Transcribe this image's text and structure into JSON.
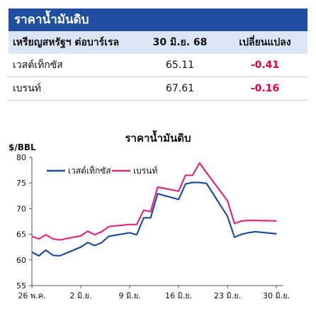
{
  "table": {
    "title": "ราคาน้ำมันดิบ",
    "header": {
      "name": "เหรียญสหรัฐฯ ต่อบาร์เรล",
      "price": "30 มิ.ย. 68",
      "change": "เปลี่ยนแปลง"
    },
    "rows": [
      {
        "name": "เวสต์เท็กซัส",
        "price": "65.11",
        "change": "-0.41"
      },
      {
        "name": "เบรนท์",
        "price": "67.61",
        "change": "-0.16"
      }
    ]
  },
  "chart_data": {
    "type": "line",
    "title": "ราคาน้ำมันดิบ",
    "ylabel": "$/BBL",
    "xlabel": "",
    "ylim": [
      55,
      80
    ],
    "yticks": [
      55,
      60,
      65,
      70,
      75,
      80
    ],
    "xlim": [
      0,
      36
    ],
    "xticks": [
      {
        "x": 0,
        "label": "26 พ.ค."
      },
      {
        "x": 7,
        "label": "2 มิ.ย."
      },
      {
        "x": 14,
        "label": "9 มิ.ย."
      },
      {
        "x": 21,
        "label": "16 มิ.ย."
      },
      {
        "x": 28,
        "label": "23 มิ.ย."
      },
      {
        "x": 35,
        "label": "30 มิ.ย."
      }
    ],
    "legend_position": "top-left",
    "grid": false,
    "series": [
      {
        "name": "เวสต์เท็กซัส",
        "color": "#1f4f9e",
        "x": [
          0,
          1,
          2,
          3,
          4,
          7,
          8,
          9,
          10,
          11,
          14,
          15,
          16,
          17,
          18,
          21,
          22,
          23,
          24,
          25,
          28,
          29,
          30,
          31,
          32,
          35
        ],
        "values": [
          61.5,
          60.8,
          61.9,
          60.9,
          60.8,
          62.5,
          63.4,
          62.8,
          63.4,
          64.6,
          65.3,
          64.9,
          68.2,
          68.2,
          72.9,
          71.8,
          74.8,
          75.1,
          75.1,
          74.9,
          68.5,
          64.4,
          65.0,
          65.3,
          65.5,
          65.1
        ]
      },
      {
        "name": "เบรนท์",
        "color": "#e0287e",
        "x": [
          0,
          1,
          2,
          3,
          4,
          7,
          8,
          9,
          10,
          11,
          14,
          15,
          16,
          17,
          18,
          21,
          22,
          23,
          24,
          25,
          28,
          29,
          30,
          31,
          32,
          35
        ],
        "values": [
          64.6,
          64.1,
          64.9,
          64.1,
          63.9,
          64.7,
          65.6,
          64.9,
          65.5,
          66.5,
          66.9,
          66.9,
          69.7,
          69.4,
          74.2,
          73.4,
          76.5,
          76.5,
          78.9,
          77.0,
          71.5,
          67.1,
          67.6,
          67.7,
          67.7,
          67.6
        ]
      }
    ]
  }
}
